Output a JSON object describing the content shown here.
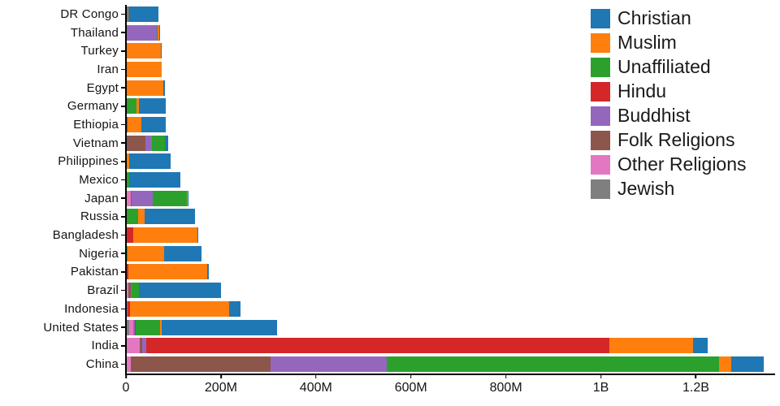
{
  "chart_data": {
    "type": "bar",
    "orientation": "horizontal",
    "stacked": true,
    "title": "",
    "xlabel": "",
    "ylabel": "",
    "unit": "people (millions)",
    "xlim_M": [
      0,
      1360
    ],
    "grid": false,
    "legend_position": "top-right",
    "categories": [
      "DR Congo",
      "Thailand",
      "Turkey",
      "Iran",
      "Egypt",
      "Germany",
      "Ethiopia",
      "Vietnam",
      "Philippines",
      "Mexico",
      "Japan",
      "Russia",
      "Bangladesh",
      "Nigeria",
      "Pakistan",
      "Brazil",
      "Indonesia",
      "United States",
      "India",
      "China"
    ],
    "stack_order": [
      "Jewish",
      "Other Religions",
      "Folk Religions",
      "Buddhist",
      "Hindu",
      "Unaffiliated",
      "Muslim",
      "Christian"
    ],
    "xticks": [
      {
        "value_M": 0,
        "label": "0"
      },
      {
        "value_M": 200,
        "label": "200M"
      },
      {
        "value_M": 400,
        "label": "400M"
      },
      {
        "value_M": 600,
        "label": "600M"
      },
      {
        "value_M": 800,
        "label": "800M"
      },
      {
        "value_M": 1000,
        "label": "1B"
      },
      {
        "value_M": 1200,
        "label": "1.2B"
      }
    ],
    "series": [
      {
        "name": "Christian",
        "color": "#1f77b4",
        "values_M": [
          63.2,
          0.6,
          0.3,
          0.1,
          4.3,
          56.5,
          52.6,
          7.7,
          86.4,
          107.8,
          2.0,
          104.8,
          0.3,
          78.1,
          2.8,
          173.3,
          23.7,
          243.1,
          31.1,
          68.4
        ]
      },
      {
        "name": "Muslim",
        "color": "#ff7f0e",
        "values_M": [
          1.0,
          3.9,
          71.3,
          73.6,
          77.0,
          4.8,
          28.7,
          0.2,
          5.1,
          0.1,
          0.2,
          14.3,
          134.4,
          77.3,
          167.4,
          0.1,
          209.1,
          2.8,
          176.2,
          24.7
        ]
      },
      {
        "name": "Unaffiliated",
        "color": "#2ca02c",
        "values_M": [
          1.2,
          0.2,
          0.9,
          0.3,
          0.0,
          20.4,
          0.1,
          26.0,
          0.1,
          5.7,
          72.1,
          23.2,
          0.1,
          0.7,
          0.0,
          15.4,
          0.2,
          51.0,
          0.9,
          700.7
        ]
      },
      {
        "name": "Hindu",
        "color": "#d62728",
        "values_M": [
          0,
          0.1,
          0,
          0,
          0,
          0,
          0,
          0,
          0,
          0,
          0,
          0,
          13.5,
          0,
          3.3,
          0,
          4.1,
          1.8,
          973.8,
          0
        ]
      },
      {
        "name": "Buddhist",
        "color": "#9467bd",
        "values_M": [
          0,
          64.4,
          0,
          0,
          0,
          0.3,
          0,
          14.4,
          0,
          0,
          45.8,
          0.9,
          0.9,
          0,
          0,
          0.3,
          1.7,
          3.6,
          9.3,
          244.1
        ]
      },
      {
        "name": "Folk Religions",
        "color": "#8c564b",
        "values_M": [
          1.8,
          0.4,
          0,
          0,
          0,
          0.1,
          2.3,
          39.8,
          1.4,
          0.1,
          0.5,
          0.2,
          0.8,
          1.4,
          0.1,
          5.5,
          1.0,
          0.6,
          5.8,
          294.3
        ]
      },
      {
        "name": "Other Religions",
        "color": "#e377c2",
        "values_M": [
          0,
          0,
          0,
          0.4,
          0,
          0.1,
          0.1,
          0.4,
          0.1,
          0.1,
          9.8,
          0.2,
          0,
          0.1,
          0.1,
          4.6,
          0.3,
          8.8,
          27.6,
          9.2
        ]
      },
      {
        "name": "Jewish",
        "color": "#7f7f7f",
        "values_M": [
          0,
          0,
          0,
          0,
          0,
          0.2,
          0,
          0,
          0,
          0,
          0,
          0.3,
          0,
          0,
          0,
          0.1,
          0,
          5.7,
          0,
          0
        ]
      }
    ]
  }
}
